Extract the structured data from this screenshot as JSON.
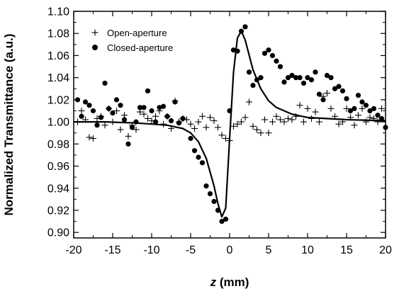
{
  "chart_data": {
    "type": "scatter",
    "title": "",
    "xlabel_var": "z",
    "xlabel_unit": " (mm)",
    "ylabel": "Normalized Transmittance (a.u.)",
    "xlim": [
      -20,
      20
    ],
    "ylim": [
      0.895,
      1.1
    ],
    "x_ticks": [
      -20,
      -15,
      -10,
      -5,
      0,
      5,
      10,
      15,
      20
    ],
    "x_tick_labels": [
      "-20",
      "-15",
      "-10",
      "-5",
      "0",
      "5",
      "10",
      "15",
      "20"
    ],
    "y_ticks": [
      0.9,
      0.92,
      0.94,
      0.96,
      0.98,
      1.0,
      1.02,
      1.04,
      1.06,
      1.08,
      1.1
    ],
    "y_tick_labels": [
      "0.90",
      "0.92",
      "0.94",
      "0.96",
      "0.98",
      "1.00",
      "1.02",
      "1.04",
      "1.06",
      "1.08",
      "1.10"
    ],
    "grid": false,
    "legend_position": "top-left",
    "series": [
      {
        "name": "Open-aperture",
        "marker": "plus",
        "points": [
          [
            -19.5,
            1.0
          ],
          [
            -19.0,
            1.01
          ],
          [
            -18.5,
            1.002
          ],
          [
            -18.0,
            0.986
          ],
          [
            -17.5,
            0.985
          ],
          [
            -17.0,
            1.003
          ],
          [
            -16.5,
            1.005
          ],
          [
            -16.0,
            0.997
          ],
          [
            -15.5,
            1.012
          ],
          [
            -15.0,
            1.0
          ],
          [
            -14.5,
            1.01
          ],
          [
            -14.0,
            0.993
          ],
          [
            -13.5,
            1.006
          ],
          [
            -13.0,
            0.987
          ],
          [
            -12.5,
            0.997
          ],
          [
            -12.0,
            0.993
          ],
          [
            -11.5,
            1.009
          ],
          [
            -11.0,
            1.007
          ],
          [
            -10.5,
            1.003
          ],
          [
            -10.0,
            1.001
          ],
          [
            -9.5,
            1.005
          ],
          [
            -9.0,
            1.01
          ],
          [
            -8.5,
            0.998
          ],
          [
            -8.0,
            1.005
          ],
          [
            -7.5,
            0.994
          ],
          [
            -7.0,
            1.019
          ],
          [
            -6.5,
            1.0
          ],
          [
            -6.0,
            1.003
          ],
          [
            -5.5,
            1.002
          ],
          [
            -5.0,
            0.998
          ],
          [
            -4.5,
            0.994
          ],
          [
            -4.0,
            1.0
          ],
          [
            -3.5,
            1.005
          ],
          [
            -3.0,
            0.995
          ],
          [
            -2.5,
            1.004
          ],
          [
            -2.0,
            1.001
          ],
          [
            -1.5,
            0.995
          ],
          [
            -1.0,
            0.988
          ],
          [
            -0.5,
            0.985
          ],
          [
            0.0,
            0.983
          ],
          [
            0.5,
            0.996
          ],
          [
            1.0,
            0.998
          ],
          [
            1.5,
            1.0
          ],
          [
            2.0,
            1.004
          ],
          [
            2.5,
            1.018
          ],
          [
            3.0,
            0.996
          ],
          [
            3.5,
            0.993
          ],
          [
            4.0,
            0.99
          ],
          [
            4.5,
            1.002
          ],
          [
            5.0,
            0.99
          ],
          [
            5.5,
            1.0
          ],
          [
            6.0,
            1.005
          ],
          [
            6.5,
            1.002
          ],
          [
            7.0,
            1.0
          ],
          [
            7.5,
            1.003
          ],
          [
            8.0,
            1.002
          ],
          [
            8.5,
            1.005
          ],
          [
            9.0,
            1.015
          ],
          [
            9.5,
            1.0
          ],
          [
            10.0,
            1.012
          ],
          [
            10.5,
            1.003
          ],
          [
            11.0,
            1.009
          ],
          [
            11.5,
            1.0
          ],
          [
            12.0,
            1.023
          ],
          [
            12.5,
            1.026
          ],
          [
            13.0,
            1.012
          ],
          [
            13.5,
            1.005
          ],
          [
            14.0,
            0.998
          ],
          [
            14.5,
            1.0
          ],
          [
            15.0,
            1.012
          ],
          [
            15.5,
            1.004
          ],
          [
            16.0,
            0.997
          ],
          [
            16.5,
            1.006
          ],
          [
            17.0,
            1.012
          ],
          [
            17.5,
            1.0
          ],
          [
            18.0,
            1.004
          ],
          [
            18.5,
            1.003
          ],
          [
            19.0,
            1.0
          ],
          [
            19.5,
            1.012
          ]
        ]
      },
      {
        "name": "Closed-aperture",
        "marker": "filled-circle",
        "points": [
          [
            -19.5,
            1.02
          ],
          [
            -19.0,
            1.005
          ],
          [
            -18.5,
            1.018
          ],
          [
            -18.0,
            1.015
          ],
          [
            -17.5,
            1.01
          ],
          [
            -17.0,
            0.997
          ],
          [
            -16.5,
            1.004
          ],
          [
            -16.0,
            1.035
          ],
          [
            -15.5,
            1.012
          ],
          [
            -15.0,
            1.008
          ],
          [
            -14.5,
            1.02
          ],
          [
            -14.0,
            1.015
          ],
          [
            -13.5,
            1.002
          ],
          [
            -13.0,
            0.98
          ],
          [
            -12.5,
            0.995
          ],
          [
            -12.0,
            1.0
          ],
          [
            -11.5,
            1.013
          ],
          [
            -11.0,
            1.013
          ],
          [
            -10.5,
            1.028
          ],
          [
            -10.0,
            1.01
          ],
          [
            -9.5,
            1.0
          ],
          [
            -9.0,
            1.013
          ],
          [
            -8.5,
            1.014
          ],
          [
            -8.0,
            1.005
          ],
          [
            -7.5,
            1.001
          ],
          [
            -7.0,
            1.018
          ],
          [
            -6.5,
            0.999
          ],
          [
            -6.0,
            1.003
          ],
          [
            -5.0,
            0.985
          ],
          [
            -4.5,
            0.974
          ],
          [
            -4.0,
            0.968
          ],
          [
            -3.5,
            0.963
          ],
          [
            -3.0,
            0.942
          ],
          [
            -2.5,
            0.935
          ],
          [
            -2.0,
            0.928
          ],
          [
            -1.5,
            0.92
          ],
          [
            -1.0,
            0.91
          ],
          [
            -0.5,
            0.912
          ],
          [
            0.0,
            1.01
          ],
          [
            0.5,
            1.065
          ],
          [
            1.0,
            1.064
          ],
          [
            1.5,
            1.082
          ],
          [
            2.0,
            1.086
          ],
          [
            2.5,
            1.045
          ],
          [
            3.0,
            1.033
          ],
          [
            3.5,
            1.038
          ],
          [
            4.0,
            1.04
          ],
          [
            4.5,
            1.062
          ],
          [
            5.0,
            1.065
          ],
          [
            5.5,
            1.06
          ],
          [
            6.0,
            1.055
          ],
          [
            6.5,
            1.05
          ],
          [
            7.0,
            1.036
          ],
          [
            7.5,
            1.04
          ],
          [
            8.0,
            1.042
          ],
          [
            8.5,
            1.04
          ],
          [
            9.0,
            1.04
          ],
          [
            9.5,
            1.035
          ],
          [
            10.0,
            1.04
          ],
          [
            10.5,
            1.038
          ],
          [
            11.0,
            1.045
          ],
          [
            11.5,
            1.025
          ],
          [
            12.0,
            1.02
          ],
          [
            12.5,
            1.042
          ],
          [
            13.0,
            1.04
          ],
          [
            13.5,
            1.03
          ],
          [
            14.0,
            1.032
          ],
          [
            14.5,
            1.028
          ],
          [
            15.0,
            1.021
          ],
          [
            15.5,
            1.01
          ],
          [
            16.0,
            1.012
          ],
          [
            16.5,
            1.024
          ],
          [
            17.0,
            1.018
          ],
          [
            17.5,
            1.015
          ],
          [
            18.0,
            1.01
          ],
          [
            18.5,
            1.012
          ],
          [
            19.0,
            1.006
          ],
          [
            19.5,
            1.003
          ],
          [
            20.0,
            0.995
          ]
        ]
      },
      {
        "name": "",
        "marker": "line",
        "points": [
          [
            -20,
            1.0
          ],
          [
            -16,
            1.0
          ],
          [
            -12,
            0.999
          ],
          [
            -10,
            0.998
          ],
          [
            -8,
            0.997
          ],
          [
            -6,
            0.994
          ],
          [
            -5,
            0.99
          ],
          [
            -4,
            0.982
          ],
          [
            -3,
            0.967
          ],
          [
            -2,
            0.942
          ],
          [
            -1.5,
            0.926
          ],
          [
            -1,
            0.914
          ],
          [
            -0.5,
            0.922
          ],
          [
            0,
            0.985
          ],
          [
            0.5,
            1.045
          ],
          [
            1,
            1.076
          ],
          [
            1.5,
            1.082
          ],
          [
            2,
            1.074
          ],
          [
            3,
            1.047
          ],
          [
            4,
            1.03
          ],
          [
            5,
            1.019
          ],
          [
            6,
            1.013
          ],
          [
            8,
            1.007
          ],
          [
            10,
            1.004
          ],
          [
            15,
            1.002
          ],
          [
            20,
            1.001
          ]
        ]
      }
    ]
  }
}
